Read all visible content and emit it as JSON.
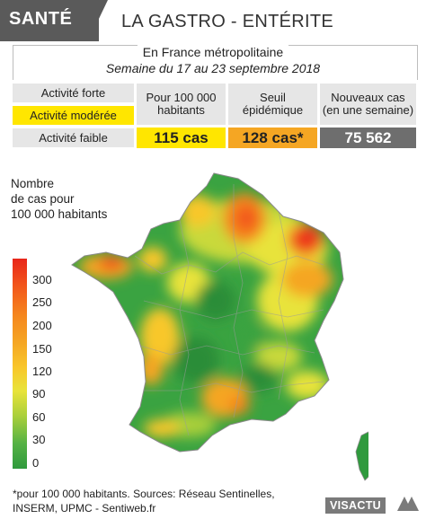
{
  "header": {
    "category": "SANTÉ",
    "title": "LA GASTRO - ENTÉRITE"
  },
  "subtitle": {
    "region": "En France métropolitaine",
    "week": "Semaine du 17 au 23 septembre 2018"
  },
  "legend_levels": [
    {
      "label": "Activité forte",
      "color": "#e6e6e6"
    },
    {
      "label": "Activité modérée",
      "color": "#ffe600"
    },
    {
      "label": "Activité faible",
      "color": "#e6e6e6"
    }
  ],
  "stats": [
    {
      "header": "Pour 100 000 habitants",
      "value": "115 cas",
      "color": "#ffe600"
    },
    {
      "header": "Seuil épidémique",
      "value": "128 cas*",
      "color": "#f5a623"
    },
    {
      "header": "Nouveaux cas (en une semaine)",
      "value": "75 562",
      "color": "#6e6e6e"
    }
  ],
  "map": {
    "scale_title": [
      "Nombre",
      "de cas pour",
      "100 000 habitants"
    ],
    "scale_ticks": [
      "300",
      "250",
      "200",
      "150",
      "120",
      "90",
      "60",
      "30",
      "0"
    ],
    "scale_colors": [
      "#e8261a",
      "#f2561b",
      "#f5861e",
      "#f5a623",
      "#f8c72a",
      "#e8e33a",
      "#a9cf3b",
      "#55b244",
      "#2f9a3d"
    ]
  },
  "footer": {
    "line1": "*pour 100 000 habitants. Sources: Réseau Sentinelles,",
    "line2": "INSERM, UPMC - Sentiweb.fr",
    "logo": "VISACTU"
  }
}
